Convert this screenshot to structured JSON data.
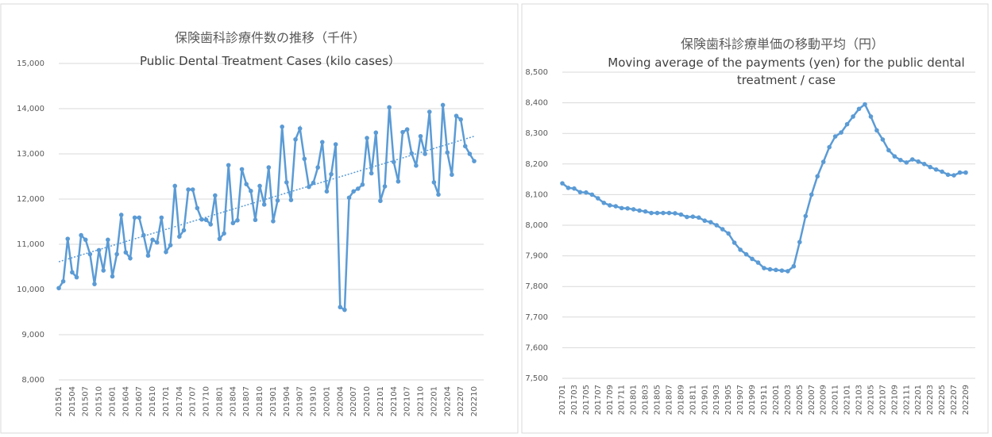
{
  "chart_data": [
    {
      "type": "line",
      "title": "保険歯科診療件数の推移（千件）",
      "subtitle": "Public Dental Treatment Cases (kilo cases）",
      "categories": [
        "201501",
        null,
        null,
        "201504",
        null,
        null,
        "201507",
        null,
        null,
        "201510",
        null,
        null,
        "201601",
        null,
        null,
        "201604",
        null,
        null,
        "201607",
        null,
        null,
        "201610",
        null,
        null,
        "201701",
        null,
        null,
        "201704",
        null,
        null,
        "201707",
        null,
        null,
        "201710",
        null,
        null,
        "201801",
        null,
        null,
        "201804",
        null,
        null,
        "201807",
        null,
        null,
        "201810",
        null,
        null,
        "201901",
        null,
        null,
        "201904",
        null,
        null,
        "201907",
        null,
        null,
        "201910",
        null,
        null,
        "202001",
        null,
        null,
        "202004",
        null,
        null,
        "202007",
        null,
        null,
        "202010",
        null,
        null,
        "202101",
        null,
        null,
        "202104",
        null,
        null,
        "202107",
        null,
        null,
        "202110",
        null,
        null,
        "202201",
        null,
        null,
        "202204",
        null,
        null,
        "202207",
        null,
        null,
        "202210"
      ],
      "values": [
        10030,
        10180,
        11120,
        10380,
        10270,
        11200,
        11100,
        10780,
        10120,
        10870,
        10420,
        11100,
        10290,
        10780,
        11650,
        10820,
        10690,
        11590,
        11590,
        11200,
        10750,
        11100,
        11040,
        11590,
        10830,
        10980,
        12290,
        11170,
        11310,
        12210,
        12210,
        11800,
        11550,
        11540,
        11440,
        12080,
        11120,
        11240,
        12750,
        11470,
        11530,
        12660,
        12330,
        12180,
        11540,
        12290,
        11880,
        12700,
        11510,
        11970,
        13600,
        12370,
        11980,
        13320,
        13560,
        12890,
        12270,
        12360,
        12700,
        13260,
        12170,
        12550,
        13210,
        9610,
        9550,
        12030,
        12170,
        12230,
        12320,
        13350,
        12570,
        13470,
        11960,
        12280,
        14030,
        12820,
        12390,
        13480,
        13540,
        13010,
        12740,
        13390,
        13000,
        13930,
        12370,
        12100,
        14080,
        13030,
        12540,
        13840,
        13760,
        13170,
        13000,
        12840
      ],
      "color": "#5b9bd5",
      "trendline": true,
      "grid": true,
      "ylim": [
        8000,
        15000
      ],
      "yticks": [
        {
          "value": 8000,
          "label": "8,000"
        },
        {
          "value": 9000,
          "label": "9,000"
        },
        {
          "value": 10000,
          "label": "10,000"
        },
        {
          "value": 11000,
          "label": "11,000"
        },
        {
          "value": 12000,
          "label": "12,000"
        },
        {
          "value": 13000,
          "label": "13,000"
        },
        {
          "value": 14000,
          "label": "14,000"
        },
        {
          "value": 15000,
          "label": "15,000"
        }
      ]
    },
    {
      "type": "line",
      "title": "保険歯科診療単価の移動平均（円）",
      "subtitle": "Moving average of the payments (yen) for the public dental treatment / case",
      "categories": [
        "201701",
        null,
        "201703",
        null,
        "201705",
        null,
        "201707",
        null,
        "201709",
        null,
        "201711",
        null,
        "201801",
        null,
        "201803",
        null,
        "201805",
        null,
        "201807",
        null,
        "201809",
        null,
        "201811",
        null,
        "201901",
        null,
        "201903",
        null,
        "201905",
        null,
        "201907",
        null,
        "201909",
        null,
        "201911",
        null,
        "202001",
        null,
        "202003",
        null,
        "202005",
        null,
        "202007",
        null,
        "202009",
        null,
        "202011",
        null,
        "202101",
        null,
        "202103",
        null,
        "202105",
        null,
        "202107",
        null,
        "202109",
        null,
        "202111",
        null,
        "202201",
        null,
        "202203",
        null,
        "202205",
        null,
        "202207",
        null,
        "202209"
      ],
      "values": [
        8137,
        8122,
        8120,
        8108,
        8107,
        8100,
        8088,
        8073,
        8065,
        8062,
        8056,
        8055,
        8052,
        8048,
        8045,
        8040,
        8040,
        8040,
        8040,
        8039,
        8035,
        8027,
        8028,
        8025,
        8015,
        8010,
        8000,
        7987,
        7973,
        7943,
        7920,
        7905,
        7890,
        7878,
        7860,
        7856,
        7854,
        7852,
        7850,
        7866,
        7945,
        8030,
        8100,
        8160,
        8207,
        8255,
        8290,
        8303,
        8330,
        8355,
        8380,
        8395,
        8355,
        8310,
        8280,
        8245,
        8225,
        8213,
        8205,
        8215,
        8208,
        8200,
        8190,
        8182,
        8175,
        8165,
        8163,
        8172,
        8172
      ],
      "color": "#5b9bd5",
      "trendline": false,
      "grid": true,
      "ylim": [
        7500,
        8500
      ],
      "yticks": [
        {
          "value": 7500,
          "label": "7,500"
        },
        {
          "value": 7600,
          "label": "7,600"
        },
        {
          "value": 7700,
          "label": "7,700"
        },
        {
          "value": 7800,
          "label": "7,800"
        },
        {
          "value": 7900,
          "label": "7,900"
        },
        {
          "value": 8000,
          "label": "8,000"
        },
        {
          "value": 8100,
          "label": "8,100"
        },
        {
          "value": 8200,
          "label": "8,200"
        },
        {
          "value": 8300,
          "label": "8,300"
        },
        {
          "value": 8400,
          "label": "8,400"
        },
        {
          "value": 8500,
          "label": "8,500"
        }
      ]
    }
  ]
}
